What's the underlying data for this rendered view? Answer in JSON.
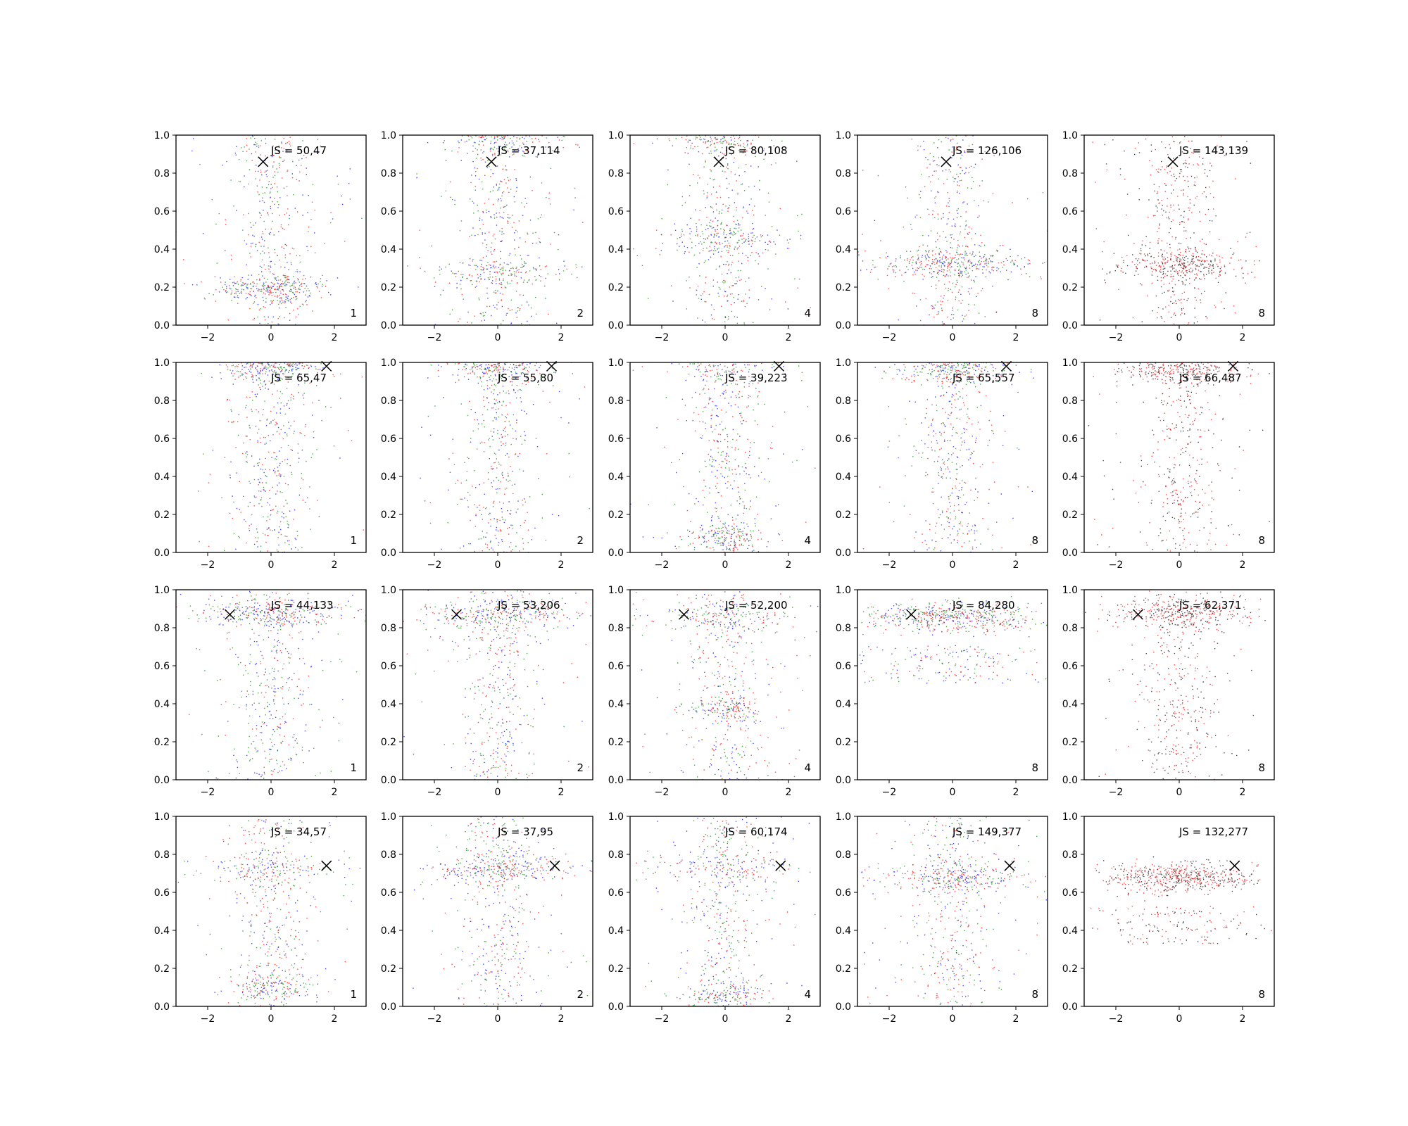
{
  "chart_data": {
    "type": "scatter",
    "grid": false,
    "legend": "none",
    "xlim": [
      -3,
      3
    ],
    "ylim": [
      0,
      1
    ],
    "xticks": [
      "−2",
      "0",
      "2"
    ],
    "yticks": [
      "0.0",
      "0.2",
      "0.4",
      "0.6",
      "0.8",
      "1.0"
    ],
    "colors": {
      "blue": "#0000ff",
      "green": "#008000",
      "red": "#ff0000",
      "black": "#000000"
    },
    "panels": [
      {
        "row": 0,
        "col": 0,
        "js": "JS = 50,47",
        "corner": "1",
        "marker": [
          -0.25,
          0.86
        ],
        "bands": [
          {
            "y": 0.2,
            "w": 2.0
          }
        ],
        "colors": [
          "blue",
          "green",
          "red"
        ],
        "column": true
      },
      {
        "row": 0,
        "col": 1,
        "js": "JS = 37,114",
        "corner": "2",
        "marker": [
          -0.2,
          0.86
        ],
        "bands": [
          {
            "y": 0.28,
            "w": 2.5
          },
          {
            "y": 0.99,
            "w": 2.0
          }
        ],
        "colors": [
          "blue",
          "green",
          "red"
        ],
        "column": true
      },
      {
        "row": 0,
        "col": 2,
        "js": "JS = 80,108",
        "corner": "4",
        "marker": [
          -0.2,
          0.86
        ],
        "bands": [
          {
            "y": 0.46,
            "w": 2.5
          },
          {
            "y": 0.99,
            "w": 1.8
          }
        ],
        "colors": [
          "blue",
          "green",
          "red"
        ],
        "column": true
      },
      {
        "row": 0,
        "col": 3,
        "js": "JS = 126,106",
        "corner": "8",
        "marker": [
          -0.2,
          0.86
        ],
        "bands": [
          {
            "y": 0.33,
            "w": 2.8
          }
        ],
        "colors": [
          "blue",
          "green",
          "red"
        ],
        "column": true
      },
      {
        "row": 0,
        "col": 4,
        "js": "JS = 143,139",
        "corner": "8",
        "marker": [
          -0.2,
          0.86
        ],
        "bands": [
          {
            "y": 0.32,
            "w": 2.5
          }
        ],
        "colors": [
          "black",
          "red"
        ],
        "column": true
      },
      {
        "row": 1,
        "col": 0,
        "js": "JS = 65,47",
        "corner": "1",
        "marker": [
          1.75,
          0.98
        ],
        "bands": [
          {
            "y": 0.98,
            "w": 1.8
          }
        ],
        "colors": [
          "blue",
          "green",
          "red"
        ],
        "column": true
      },
      {
        "row": 1,
        "col": 1,
        "js": "JS = 55,80",
        "corner": "2",
        "marker": [
          1.7,
          0.98
        ],
        "bands": [
          {
            "y": 0.99,
            "w": 1.8
          }
        ],
        "colors": [
          "blue",
          "green",
          "red"
        ],
        "column": true
      },
      {
        "row": 1,
        "col": 2,
        "js": "JS = 39,223",
        "corner": "4",
        "marker": [
          1.7,
          0.98
        ],
        "bands": [
          {
            "y": 0.98,
            "w": 2.2
          },
          {
            "y": 0.08,
            "w": 1.5
          }
        ],
        "colors": [
          "blue",
          "green",
          "red"
        ],
        "column": true
      },
      {
        "row": 1,
        "col": 3,
        "js": "JS = 65,557",
        "corner": "8",
        "marker": [
          1.7,
          0.98
        ],
        "bands": [
          {
            "y": 0.98,
            "w": 2.2
          }
        ],
        "colors": [
          "blue",
          "green",
          "red"
        ],
        "column": true
      },
      {
        "row": 1,
        "col": 4,
        "js": "JS = 66,487",
        "corner": "8",
        "marker": [
          1.7,
          0.98
        ],
        "bands": [
          {
            "y": 0.97,
            "w": 2.2
          }
        ],
        "colors": [
          "black",
          "red"
        ],
        "column": true
      },
      {
        "row": 2,
        "col": 0,
        "js": "JS = 44,133",
        "corner": "1",
        "marker": [
          -1.3,
          0.87
        ],
        "bands": [
          {
            "y": 0.88,
            "w": 2.8
          }
        ],
        "colors": [
          "blue",
          "green",
          "red"
        ],
        "column": true
      },
      {
        "row": 2,
        "col": 1,
        "js": "JS = 53,206",
        "corner": "2",
        "marker": [
          -1.3,
          0.87
        ],
        "bands": [
          {
            "y": 0.87,
            "w": 2.8
          }
        ],
        "colors": [
          "blue",
          "green",
          "red"
        ],
        "column": true
      },
      {
        "row": 2,
        "col": 2,
        "js": "JS = 52,200",
        "corner": "4",
        "marker": [
          -1.3,
          0.87
        ],
        "bands": [
          {
            "y": 0.86,
            "w": 2.8
          },
          {
            "y": 0.38,
            "w": 1.3
          }
        ],
        "colors": [
          "blue",
          "green",
          "red"
        ],
        "column": true
      },
      {
        "row": 2,
        "col": 3,
        "js": "JS = 84,280",
        "corner": "8",
        "marker": [
          -1.3,
          0.87
        ],
        "bands": [
          {
            "y": 0.86,
            "w": 3.0
          }
        ],
        "colors": [
          "blue",
          "green",
          "red"
        ],
        "column": false
      },
      {
        "row": 2,
        "col": 4,
        "js": "JS = 62,371",
        "corner": "8",
        "marker": [
          -1.3,
          0.87
        ],
        "bands": [
          {
            "y": 0.88,
            "w": 2.6
          }
        ],
        "colors": [
          "black",
          "red"
        ],
        "column": true
      },
      {
        "row": 3,
        "col": 0,
        "js": "JS = 34,57",
        "corner": "1",
        "marker": [
          1.75,
          0.74
        ],
        "bands": [
          {
            "y": 0.72,
            "w": 2.6
          },
          {
            "y": 0.1,
            "w": 1.5
          }
        ],
        "colors": [
          "blue",
          "green",
          "red"
        ],
        "column": true
      },
      {
        "row": 3,
        "col": 1,
        "js": "JS = 37,95",
        "corner": "2",
        "marker": [
          1.8,
          0.74
        ],
        "bands": [
          {
            "y": 0.73,
            "w": 2.8
          }
        ],
        "colors": [
          "blue",
          "green",
          "red"
        ],
        "column": true
      },
      {
        "row": 3,
        "col": 2,
        "js": "JS = 60,174",
        "corner": "4",
        "marker": [
          1.75,
          0.74
        ],
        "bands": [
          {
            "y": 0.74,
            "w": 2.8
          },
          {
            "y": 0.06,
            "w": 1.4
          }
        ],
        "colors": [
          "blue",
          "green",
          "red"
        ],
        "column": true
      },
      {
        "row": 3,
        "col": 3,
        "js": "JS = 149,377",
        "corner": "8",
        "marker": [
          1.8,
          0.74
        ],
        "bands": [
          {
            "y": 0.68,
            "w": 2.8
          }
        ],
        "colors": [
          "blue",
          "green",
          "red"
        ],
        "column": true
      },
      {
        "row": 3,
        "col": 4,
        "js": "JS = 132,277",
        "corner": "8",
        "marker": [
          1.75,
          0.74
        ],
        "bands": [
          {
            "y": 0.68,
            "w": 2.8
          }
        ],
        "colors": [
          "black",
          "red"
        ],
        "column": false
      }
    ]
  }
}
